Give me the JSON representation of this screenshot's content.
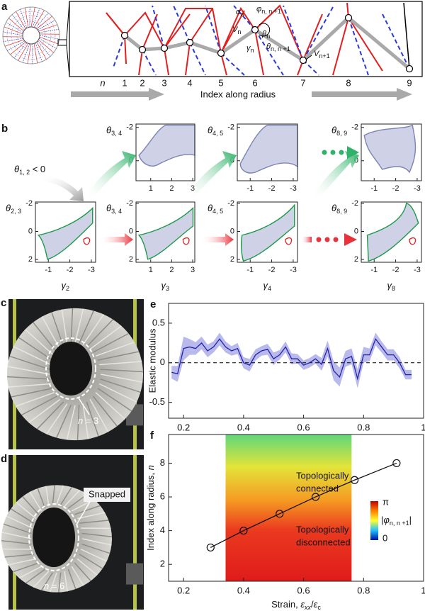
{
  "panel_a": {
    "label": "a",
    "n_label": "n",
    "indices": [
      1,
      2,
      3,
      4,
      5,
      6,
      7,
      8,
      9
    ],
    "symbols": [
      {
        "base": "α",
        "sub": "n"
      },
      {
        "base": "φ",
        "sub": "n, n +1"
      },
      {
        "base": "V",
        "sub": "n"
      },
      {
        "base": "β",
        "sub": "n"
      },
      {
        "base": "γ",
        "sub": "n"
      },
      {
        "base": "θ",
        "sub": "n, n +1"
      },
      {
        "base": "V",
        "sub": "n+1"
      }
    ],
    "arrow_text": "Index along radius"
  },
  "panel_b": {
    "label": "b",
    "condition": {
      "base": "θ",
      "sub": "1, 2",
      "rest": " < 0"
    },
    "plots": [
      {
        "ylabel": {
          "base": "θ",
          "sub": "2, 3"
        },
        "xlabel": {
          "base": "γ",
          "sub": "2"
        },
        "xlim": [
          -0.4,
          -3.2
        ],
        "ylim": [
          -2.1,
          2.2
        ],
        "xticks": [
          -1,
          -2,
          -3
        ],
        "yticks": [
          -2,
          0,
          2
        ]
      },
      {
        "ylabel": {
          "base": "θ",
          "sub": "3, 4"
        },
        "xlabel": {
          "base": "γ",
          "sub": "3"
        },
        "xlim": [
          0.3,
          3.1
        ],
        "ylim": [
          -2.1,
          2.2
        ],
        "xticks": [
          1,
          2,
          3
        ],
        "yticks": [
          -2,
          0,
          2
        ]
      },
      {
        "ylabel": {
          "base": "θ",
          "sub": "4, 5"
        },
        "xlabel": {
          "base": "γ",
          "sub": "4"
        },
        "xlim": [
          -0.4,
          -3.2
        ],
        "ylim": [
          -2.1,
          2.2
        ],
        "xticks": [
          -1,
          -2,
          -3
        ],
        "yticks": [
          -2,
          0,
          2
        ]
      },
      {
        "ylabel": {
          "base": "θ",
          "sub": "8, 9"
        },
        "xlabel": {
          "base": "γ",
          "sub": "8"
        },
        "xlim": [
          -0.4,
          -3.2
        ],
        "ylim": [
          -2.1,
          2.2
        ],
        "xticks": [
          -1,
          -2,
          -3
        ],
        "yticks": [
          -2,
          0,
          2
        ]
      },
      {
        "ylabel": {
          "base": "θ",
          "sub": "3, 4"
        },
        "xlim": [
          0.3,
          3.1
        ],
        "ylim": [
          -2.2,
          1.2
        ],
        "xticks": [
          1,
          2,
          3
        ],
        "yticks": [
          -2,
          0
        ]
      },
      {
        "ylabel": {
          "base": "θ",
          "sub": "4, 5"
        },
        "xlim": [
          -0.4,
          -3.2
        ],
        "ylim": [
          -2.2,
          1.2
        ],
        "xticks": [
          -1,
          -2,
          -3
        ],
        "yticks": [
          -2,
          0
        ]
      },
      {
        "ylabel": {
          "base": "θ",
          "sub": "8, 9"
        },
        "xlim": [
          -0.4,
          -3.2
        ],
        "ylim": [
          -2.2,
          1.2
        ],
        "xticks": [
          -1,
          -2,
          -3
        ],
        "yticks": [
          -2,
          0
        ]
      }
    ]
  },
  "panel_c": {
    "label": "c",
    "annotation": {
      "var": "n",
      "rest": " = 3"
    }
  },
  "panel_d": {
    "label": "d",
    "annotation": {
      "var": "n",
      "rest": " = 6"
    },
    "callout": "Snapped"
  },
  "chart_data": [
    {
      "type": "line",
      "label": "e",
      "ylabel": "Elastic modulus",
      "x": [
        0.16,
        0.18,
        0.2,
        0.22,
        0.24,
        0.26,
        0.28,
        0.3,
        0.32,
        0.34,
        0.36,
        0.38,
        0.4,
        0.42,
        0.44,
        0.46,
        0.48,
        0.5,
        0.52,
        0.54,
        0.56,
        0.58,
        0.6,
        0.62,
        0.64,
        0.66,
        0.68,
        0.7,
        0.72,
        0.74,
        0.76,
        0.78,
        0.8,
        0.82,
        0.84,
        0.86,
        0.88,
        0.9,
        0.92,
        0.94,
        0.96
      ],
      "series": [
        {
          "color": "#2323a8",
          "band_color": "#b9b9ec",
          "values": [
            -0.12,
            -0.14,
            0.18,
            0.2,
            0.18,
            0.25,
            0.15,
            0.2,
            0.3,
            0.2,
            0.15,
            0.18,
            0.0,
            -0.03,
            0.1,
            0.15,
            0.17,
            0.05,
            0.1,
            0.2,
            0.05,
            0.05,
            -0.03,
            0.0,
            0.05,
            -0.02,
            0.18,
            -0.1,
            -0.18,
            0.05,
            0.08,
            -0.2,
            0.1,
            0.1,
            0.3,
            0.2,
            0.1,
            0.1,
            0.0,
            -0.15,
            -0.15
          ],
          "errors": [
            0.08,
            0.1,
            0.15,
            0.1,
            0.08,
            0.08,
            0.08,
            0.07,
            0.08,
            0.07,
            0.06,
            0.07,
            0.07,
            0.08,
            0.07,
            0.06,
            0.07,
            0.08,
            0.06,
            0.07,
            0.07,
            0.06,
            0.06,
            0.06,
            0.06,
            0.08,
            0.1,
            0.12,
            0.12,
            0.1,
            0.1,
            0.12,
            0.1,
            0.08,
            0.08,
            0.07,
            0.07,
            0.07,
            0.07,
            0.06,
            0.06
          ]
        }
      ],
      "xlim": [
        0.15,
        1
      ],
      "ylim": [
        -0.7,
        0.75
      ],
      "xticks": [
        0.2,
        0.4,
        0.6,
        0.8,
        1
      ],
      "yticks": [
        -0.5,
        0,
        0.5
      ],
      "reference_line": 0
    },
    {
      "type": "line",
      "label": "f",
      "ylabel": [
        {
          "t": "Index along radius, "
        },
        {
          "t": "n",
          "italic": true
        }
      ],
      "xlabel": [
        {
          "t": "Strain, "
        },
        {
          "t": "ε",
          "italic": true
        },
        {
          "t": "xx",
          "sub": true,
          "italic": true
        },
        {
          "t": "/"
        },
        {
          "t": "ε",
          "italic": true
        },
        {
          "t": "c",
          "sub": true
        }
      ],
      "x": [
        0.29,
        0.4,
        0.52,
        0.64,
        0.77,
        0.91
      ],
      "series": [
        {
          "color": "#111111",
          "marker": "circle",
          "values": [
            3,
            4,
            5,
            6,
            7,
            8
          ]
        }
      ],
      "xlim": [
        0.15,
        1
      ],
      "ylim": [
        1,
        9.7
      ],
      "xticks": [
        0.2,
        0.4,
        0.6,
        0.8,
        1
      ],
      "yticks": [
        2,
        4,
        6,
        8
      ],
      "heatmap_xrange": [
        0.34,
        0.76
      ],
      "colorbar": {
        "max_label": "π",
        "min_label": "0",
        "label": [
          {
            "t": "|"
          },
          {
            "t": "φ",
            "italic": true
          },
          {
            "t": "n, n +1",
            "sub": true
          },
          {
            "t": "|"
          }
        ]
      },
      "annotations": [
        [
          "Topologically",
          "connected"
        ],
        [
          "Topologically",
          "disconnected"
        ]
      ]
    }
  ]
}
